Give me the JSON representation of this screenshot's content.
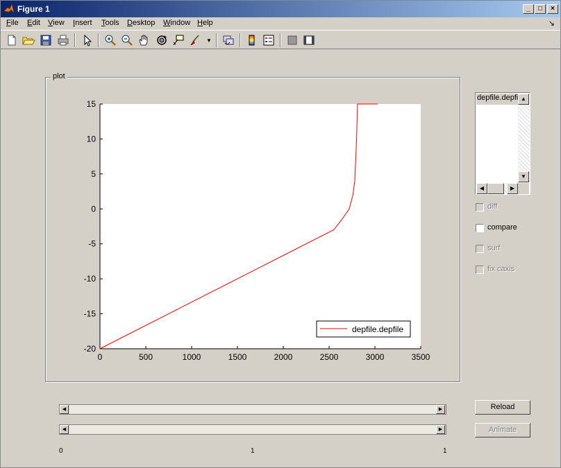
{
  "window": {
    "title": "Figure 1",
    "controls": [
      "_",
      "□",
      "×"
    ]
  },
  "menu": [
    {
      "key": "F",
      "rest": "ile"
    },
    {
      "key": "E",
      "rest": "dit"
    },
    {
      "key": "V",
      "rest": "iew"
    },
    {
      "key": "I",
      "rest": "nsert"
    },
    {
      "key": "T",
      "rest": "ools"
    },
    {
      "key": "D",
      "rest": "esktop"
    },
    {
      "key": "W",
      "rest": "indow"
    },
    {
      "key": "H",
      "rest": "elp"
    }
  ],
  "toolbar_icons": [
    "new-file-icon",
    "open-folder-icon",
    "save-icon",
    "print-icon",
    "pointer-icon",
    "zoom-in-icon",
    "zoom-out-icon",
    "pan-hand-icon",
    "rotate-3d-icon",
    "data-cursor-icon",
    "brush-icon",
    "brush-dropdown-icon",
    "link-plot-icon",
    "colorbar-icon",
    "legend-icon",
    "hide-plot-tools-icon",
    "show-plot-tools-icon"
  ],
  "panel": {
    "title": "plot"
  },
  "listbox": {
    "items": [
      "depfile.depfile"
    ]
  },
  "checkboxes": [
    {
      "label": "diff",
      "checked": false,
      "enabled": false
    },
    {
      "label": "compare",
      "checked": false,
      "enabled": true
    },
    {
      "label": "surf",
      "checked": false,
      "enabled": false
    },
    {
      "label": "fix caxis",
      "checked": false,
      "enabled": false
    }
  ],
  "buttons": {
    "reload": "Reload",
    "animate": "Animate"
  },
  "slider_labels": {
    "left": "0",
    "middle": "1",
    "right": "1"
  },
  "chart_data": {
    "type": "line",
    "xlim": [
      0,
      3500
    ],
    "ylim": [
      -20,
      15
    ],
    "xticks": [
      0,
      500,
      1000,
      1500,
      2000,
      2500,
      3000,
      3500
    ],
    "yticks": [
      -20,
      -15,
      -10,
      -5,
      0,
      5,
      10,
      15
    ],
    "grid": false,
    "legend": "bottom-right",
    "colors": {
      "line": "#ff0000"
    },
    "series": [
      {
        "name": "depfile.depfile",
        "x": [
          0,
          2550,
          2640,
          2720,
          2760,
          2780,
          2790,
          2800,
          2810,
          3030
        ],
        "y": [
          -20,
          -3,
          -1.5,
          0,
          2,
          4,
          7,
          10,
          15,
          15
        ]
      }
    ]
  }
}
